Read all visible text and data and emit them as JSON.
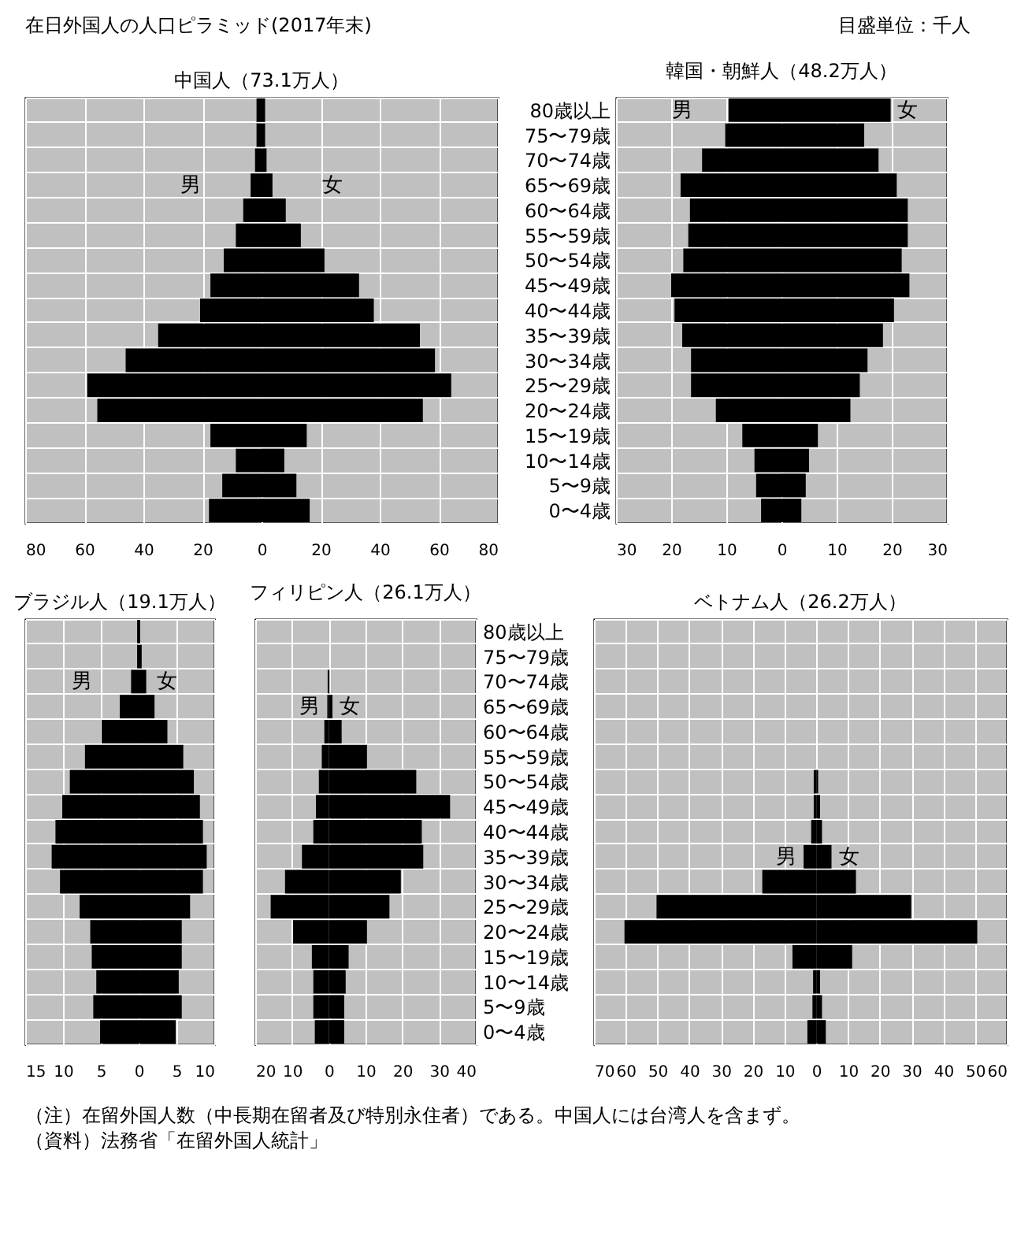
{
  "chart_data": [
    {
      "type": "other",
      "title": "在日外国人の人口ピラミッド(2017年末)",
      "annotations": [
        "目盛単位：千人",
        "（注）在留外国人数（中長期在留者及び特別永住者）である。中国人には台湾人を含まず。",
        "（資料）法務省「在留外国人統計」"
      ]
    },
    {
      "type": "bar",
      "title": "中国人（73.1万人）",
      "orientation": "horizontal",
      "stacked": true,
      "grid": true,
      "tick_labels": "x",
      "categories": [
        null,
        null,
        null,
        null,
        null,
        null,
        null,
        null,
        null,
        null,
        null,
        null,
        null,
        null,
        null,
        null,
        null
      ],
      "series": [
        {
          "name": "男",
          "color": "#000000",
          "values": [
            -1.7,
            -1.7,
            -2.2,
            -3.7,
            -6.2,
            -8.7,
            -12.8,
            -17.3,
            -20.8,
            -35,
            -46,
            -59,
            -55.6,
            -17.3,
            -8.7,
            -13.3,
            -17.8
          ]
        },
        {
          "name": "女",
          "color": "#000000",
          "values": [
            1.2,
            1.2,
            1.7,
            3.7,
            8.2,
            13.3,
            21.3,
            33,
            38,
            53.6,
            58.7,
            64.2,
            54.6,
            15.3,
            7.7,
            11.8,
            16.3
          ]
        }
      ],
      "xlim": [
        -80,
        80
      ],
      "xticks": [
        {
          "value": -80,
          "label": "80"
        },
        {
          "value": -60,
          "label": "60"
        },
        {
          "value": -40,
          "label": "40"
        },
        {
          "value": -20,
          "label": "20"
        },
        0,
        20,
        40,
        60,
        80
      ]
    },
    {
      "type": "bar",
      "title": "韓国・朝鮮人（48.2万人）",
      "orientation": "horizontal",
      "stacked": true,
      "grid": true,
      "categories": [
        "80歳以上",
        "75〜79歳",
        "70〜74歳",
        "65〜69歳",
        "60〜64歳",
        "55〜59歳",
        "50〜54歳",
        "45〜49歳",
        "40〜44歳",
        "35〜39歳",
        "30〜34歳",
        "25〜29歳",
        "20〜24歳",
        "15〜19歳",
        "10〜14歳",
        "5〜9歳",
        "0〜4歳"
      ],
      "series": [
        {
          "name": "男",
          "color": "#000000",
          "values": [
            -9.6,
            -10.2,
            -14.4,
            -18.3,
            -16.6,
            -16.9,
            -17.8,
            -20,
            -19.4,
            -18,
            -16.4,
            -16.4,
            -11.9,
            -7.1,
            -4.9,
            -4.6,
            -3.7
          ]
        },
        {
          "name": "女",
          "color": "#000000",
          "values": [
            19.8,
            15,
            17.6,
            20.9,
            22.9,
            22.9,
            21.8,
            23.2,
            20.4,
            18.4,
            15.6,
            14.2,
            12.5,
            6.6,
            5,
            4.4,
            3.6
          ]
        }
      ],
      "xlim": [
        -30,
        30
      ],
      "xticks": [
        {
          "value": -30,
          "label": "30"
        },
        {
          "value": -20,
          "label": "20"
        },
        {
          "value": -10,
          "label": "10"
        },
        0,
        10,
        20,
        30
      ]
    },
    {
      "type": "bar",
      "title": "ブラジル人（19.1万人）",
      "orientation": "horizontal",
      "stacked": true,
      "grid": true,
      "tick_labels": "x",
      "categories": [
        null,
        null,
        null,
        null,
        null,
        null,
        null,
        null,
        null,
        null,
        null,
        null,
        null,
        null,
        null,
        null,
        null
      ],
      "series": [
        {
          "name": "男",
          "color": "#000000",
          "values": [
            -0.2,
            -0.2,
            -1,
            -2.5,
            -4.9,
            -7.1,
            -9.1,
            -10.1,
            -11,
            -11.5,
            -10.4,
            -7.8,
            -6.4,
            -6.2,
            -5.6,
            -6,
            -5.1
          ]
        },
        {
          "name": "女",
          "color": "#000000",
          "values": [
            0.2,
            0.4,
            1,
            2.1,
            3.8,
            5.9,
            7.3,
            8.1,
            8.5,
            9,
            8.5,
            6.8,
            5.7,
            5.7,
            5.3,
            5.7,
            4.9
          ]
        }
      ],
      "xlim": [
        -15,
        10
      ],
      "xticks": [
        {
          "value": -15,
          "label": "15"
        },
        {
          "value": -10,
          "label": "10"
        },
        {
          "value": -5,
          "label": "5"
        },
        0,
        5,
        10
      ]
    },
    {
      "type": "bar",
      "title": "フィリピン人（26.1万人）",
      "orientation": "horizontal",
      "stacked": true,
      "grid": true,
      "categories": [
        "80歳以上",
        "75〜79歳",
        "70〜74歳",
        "65〜69歳",
        "60〜64歳",
        "55〜59歳",
        "50〜54歳",
        "45〜49歳",
        "40〜44歳",
        "35〜39歳",
        "30〜34歳",
        "25〜29歳",
        "20〜24歳",
        "15〜19歳",
        "10〜14歳",
        "5〜9歳",
        "0〜4歳"
      ],
      "series": [
        {
          "name": "男",
          "color": "#000000",
          "values": [
            0,
            0,
            -0.3,
            -0.4,
            -1.2,
            -1.9,
            -2.7,
            -3.5,
            -4.2,
            -7.3,
            -11.9,
            -15.8,
            -9.7,
            -4.6,
            -4.2,
            -4.2,
            -3.8
          ]
        },
        {
          "name": "女",
          "color": "#000000",
          "values": [
            0,
            0,
            0.2,
            1,
            3.5,
            10.4,
            23.8,
            33,
            25.3,
            25.7,
            19.6,
            16.5,
            10.4,
            5.4,
            4.6,
            4.2,
            4.2
          ]
        }
      ],
      "xlim": [
        -20,
        40
      ],
      "xticks": [
        {
          "value": -20,
          "label": "20"
        },
        {
          "value": -10,
          "label": "10"
        },
        0,
        10,
        20,
        30,
        40
      ]
    },
    {
      "type": "bar",
      "title": "ベトナム人（26.2万人）",
      "orientation": "horizontal",
      "stacked": true,
      "grid": true,
      "tick_labels": "x",
      "categories": [
        null,
        null,
        null,
        null,
        null,
        null,
        null,
        null,
        null,
        null,
        null,
        null,
        null,
        null,
        null,
        null,
        null
      ],
      "series": [
        {
          "name": "男",
          "color": "#000000",
          "values": [
            0,
            0,
            0,
            0,
            0,
            0,
            -0.8,
            -0.8,
            -1.6,
            -4,
            -17,
            -50.3,
            -60.4,
            -7.5,
            -1,
            -1.2,
            -2.8
          ]
        },
        {
          "name": "女",
          "color": "#000000",
          "values": [
            0,
            0,
            0,
            0,
            0,
            0,
            0.6,
            1.2,
            1.8,
            4.8,
            12.5,
            29.9,
            50.7,
            11.3,
            1.2,
            1.8,
            3
          ]
        }
      ],
      "xlim": [
        -70,
        60
      ],
      "xticks": [
        {
          "value": -70,
          "label": "70"
        },
        {
          "value": -60,
          "label": "60"
        },
        {
          "value": -50,
          "label": "50"
        },
        {
          "value": -40,
          "label": "40"
        },
        {
          "value": -30,
          "label": "30"
        },
        {
          "value": -20,
          "label": "20"
        },
        {
          "value": -10,
          "label": "10"
        },
        0,
        10,
        20,
        30,
        40,
        50,
        60
      ]
    }
  ]
}
